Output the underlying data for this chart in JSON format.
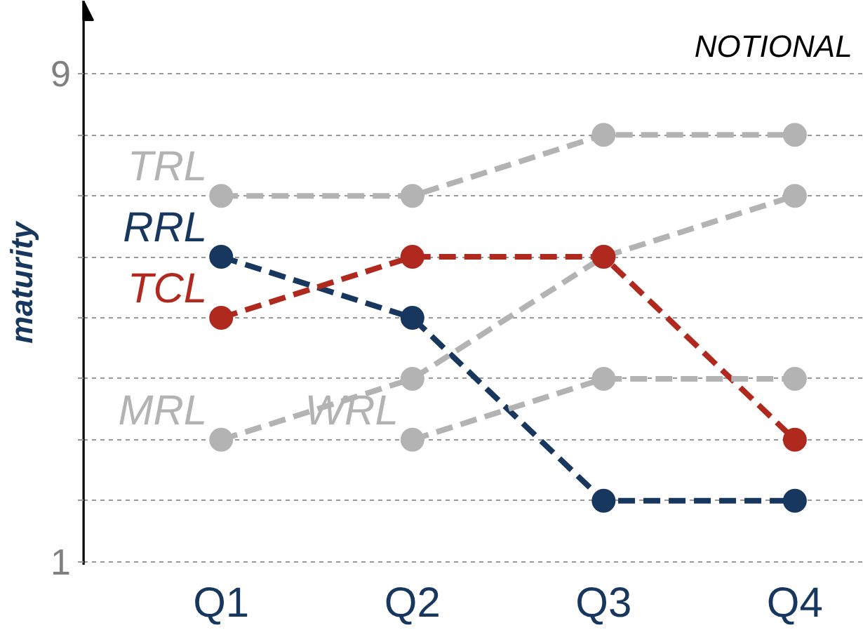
{
  "chart_data": {
    "type": "line",
    "ylabel": "maturity",
    "annotations": [
      "NOTIONAL"
    ],
    "categories": [
      "Q1",
      "Q2",
      "Q3",
      "Q4"
    ],
    "series": [
      {
        "name": "TRL",
        "color": "#b3b3b3",
        "values": [
          7,
          7,
          8,
          8
        ]
      },
      {
        "name": "RRL",
        "color": "#17375e",
        "values": [
          6,
          5,
          2,
          2
        ]
      },
      {
        "name": "TCL",
        "color": "#b0291e",
        "values": [
          5,
          6,
          6,
          3
        ]
      },
      {
        "name": "MRL",
        "color": "#b3b3b3",
        "values": [
          3,
          4,
          6,
          7
        ]
      },
      {
        "name": "WRL",
        "color": "#b3b3b3",
        "values": [
          null,
          3,
          4,
          4
        ]
      }
    ],
    "ylim": [
      0.95,
      10.2
    ],
    "yticks": [
      1,
      {
        "value": 2,
        "label": null
      },
      {
        "value": 3,
        "label": null
      },
      {
        "value": 4,
        "label": null
      },
      {
        "value": 5,
        "label": null
      },
      {
        "value": 6,
        "label": null
      },
      {
        "value": 7,
        "label": null
      },
      {
        "value": 8,
        "label": null
      },
      9
    ],
    "grid": "y",
    "legend": false,
    "marker": "circle",
    "line_style": "dashed"
  }
}
